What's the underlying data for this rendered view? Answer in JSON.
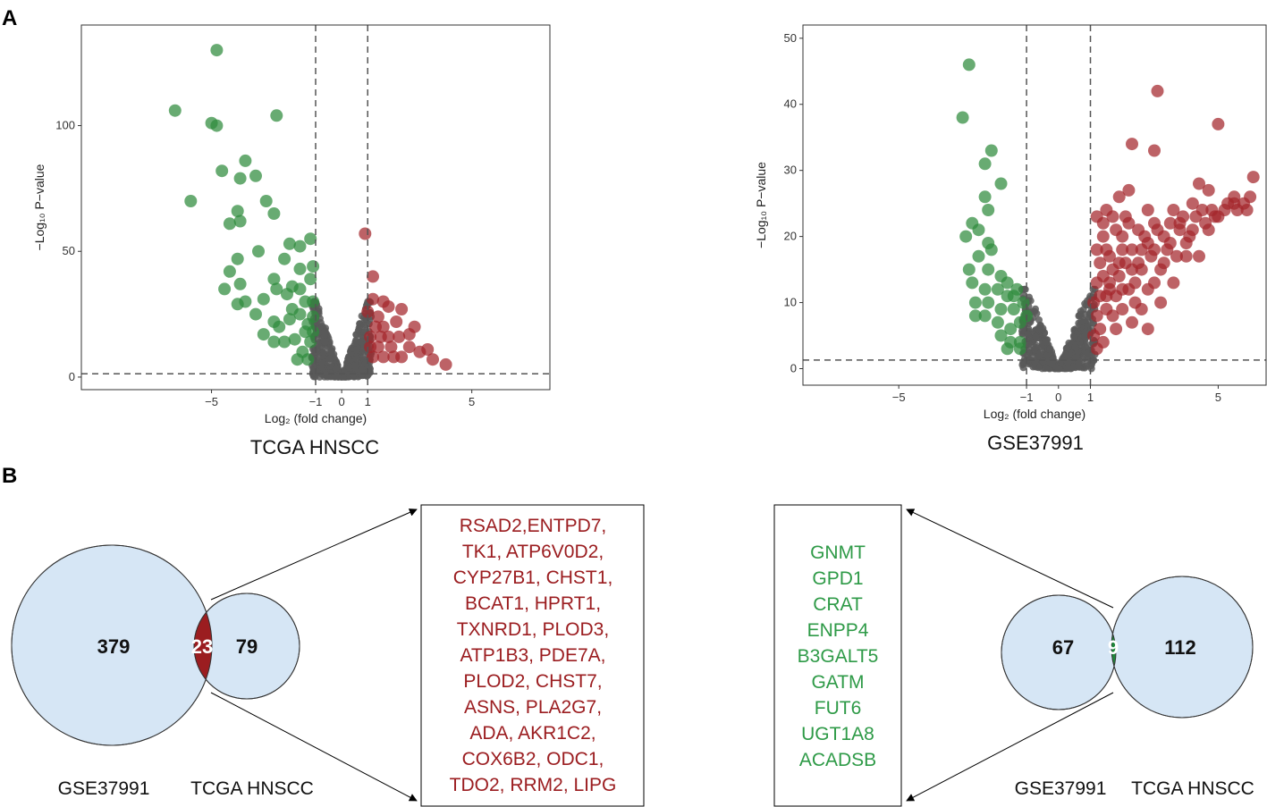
{
  "panel_labels": {
    "a": "A",
    "b": "B"
  },
  "colors": {
    "down": "#2e8b3c",
    "up": "#a3262b",
    "ns": "#595959",
    "venn_fill": "#d6e6f5",
    "venn_red": "#9b1d20",
    "venn_green": "#1f8a3a"
  },
  "chart_data": [
    {
      "type": "scatter",
      "title": "TCGA HNSCC",
      "xlabel": "Log₂ (fold change)",
      "ylabel": "−Log₁₀ P−value",
      "xlim": [
        -10,
        8
      ],
      "ylim": [
        -5,
        140
      ],
      "x_ticks": [
        -5,
        -1,
        0,
        1,
        5
      ],
      "x_tick_labels": [
        "−5",
        "−1",
        "0",
        "1",
        "5"
      ],
      "y_ticks": [
        0,
        50,
        100
      ],
      "y_tick_labels": [
        "0",
        "50",
        "100"
      ],
      "vlines": [
        -1,
        1
      ],
      "hline": 1.3,
      "series": [
        {
          "name": "down",
          "points": [
            [
              -4.8,
              130
            ],
            [
              -6.4,
              106
            ],
            [
              -5.0,
              101
            ],
            [
              -4.8,
              100
            ],
            [
              -2.5,
              104
            ],
            [
              -4.6,
              82
            ],
            [
              -3.7,
              86
            ],
            [
              -3.9,
              79
            ],
            [
              -3.3,
              80
            ],
            [
              -4.0,
              66
            ],
            [
              -4.3,
              61
            ],
            [
              -3.9,
              62
            ],
            [
              -2.9,
              70
            ],
            [
              -2.6,
              65
            ],
            [
              -5.8,
              70
            ],
            [
              -3.2,
              50
            ],
            [
              -4.0,
              47
            ],
            [
              -4.3,
              42
            ],
            [
              -3.9,
              37
            ],
            [
              -2.2,
              47
            ],
            [
              -2.0,
              53
            ],
            [
              -1.6,
              52
            ],
            [
              -1.2,
              55
            ],
            [
              -1.1,
              44
            ],
            [
              -1.6,
              43
            ],
            [
              -2.6,
              39
            ],
            [
              -4.5,
              35
            ],
            [
              -4.0,
              29
            ],
            [
              -3.7,
              30
            ],
            [
              -3.0,
              31
            ],
            [
              -2.5,
              35
            ],
            [
              -2.1,
              33
            ],
            [
              -1.6,
              35
            ],
            [
              -1.2,
              39
            ],
            [
              -1.9,
              36
            ],
            [
              -1.4,
              30
            ],
            [
              -1.1,
              30
            ],
            [
              -1.9,
              27
            ],
            [
              -3.3,
              25
            ],
            [
              -2.6,
              22
            ],
            [
              -3.0,
              17
            ],
            [
              -2.4,
              20
            ],
            [
              -2.0,
              23
            ],
            [
              -1.6,
              25
            ],
            [
              -1.3,
              21
            ],
            [
              -1.1,
              18
            ],
            [
              -1.8,
              15
            ],
            [
              -2.2,
              14
            ],
            [
              -2.6,
              14
            ],
            [
              -1.5,
              10
            ],
            [
              -1.2,
              14
            ],
            [
              -1.3,
              7
            ],
            [
              -1.7,
              7
            ],
            [
              -1.1,
              24
            ],
            [
              -1.4,
              18
            ]
          ]
        },
        {
          "name": "up",
          "points": [
            [
              0.9,
              57
            ],
            [
              1.2,
              40
            ],
            [
              1.4,
              24
            ],
            [
              1.8,
              28
            ],
            [
              1.6,
              30
            ],
            [
              1.2,
              31
            ],
            [
              2.3,
              27
            ],
            [
              2.8,
              20
            ],
            [
              2.1,
              22
            ],
            [
              1.6,
              20
            ],
            [
              2.6,
              17
            ],
            [
              2.2,
              16
            ],
            [
              1.8,
              16
            ],
            [
              1.1,
              16
            ],
            [
              1.4,
              12
            ],
            [
              2.6,
              12
            ],
            [
              3.3,
              11
            ],
            [
              3.0,
              10
            ],
            [
              3.5,
              7
            ],
            [
              4.0,
              5
            ],
            [
              1.2,
              8
            ],
            [
              1.6,
              8
            ],
            [
              2.0,
              8
            ],
            [
              2.3,
              8
            ],
            [
              1.0,
              26
            ],
            [
              1.5,
              16
            ],
            [
              1.9,
              12
            ],
            [
              1.3,
              20
            ],
            [
              1.1,
              12
            ]
          ]
        }
      ],
      "ns_max": 30
    },
    {
      "type": "scatter",
      "title": "GSE37991",
      "xlabel": "Log₂ (fold change)",
      "ylabel": "−Log₁₀ P−value",
      "xlim": [
        -8,
        6.5
      ],
      "ylim": [
        -2.5,
        52
      ],
      "x_ticks": [
        -5,
        -1,
        0,
        1,
        5
      ],
      "x_tick_labels": [
        "−5",
        "−1",
        "0",
        "1",
        "5"
      ],
      "y_ticks": [
        0,
        10,
        20,
        30,
        40,
        50
      ],
      "y_tick_labels": [
        "0",
        "10",
        "20",
        "30",
        "40",
        "50"
      ],
      "vlines": [
        -1,
        1
      ],
      "hline": 1.3,
      "series": [
        {
          "name": "down",
          "points": [
            [
              -2.8,
              46
            ],
            [
              -3.0,
              38
            ],
            [
              -2.1,
              33
            ],
            [
              -2.3,
              31
            ],
            [
              -1.8,
              28
            ],
            [
              -2.3,
              26
            ],
            [
              -2.2,
              24
            ],
            [
              -2.7,
              22
            ],
            [
              -2.5,
              21
            ],
            [
              -2.9,
              20
            ],
            [
              -2.2,
              19
            ],
            [
              -2.1,
              18
            ],
            [
              -2.5,
              17
            ],
            [
              -2.8,
              15
            ],
            [
              -2.2,
              15
            ],
            [
              -1.8,
              14
            ],
            [
              -1.6,
              13
            ],
            [
              -2.7,
              13
            ],
            [
              -2.3,
              12
            ],
            [
              -1.9,
              12
            ],
            [
              -1.6,
              11
            ],
            [
              -1.3,
              12
            ],
            [
              -2.6,
              10
            ],
            [
              -2.2,
              10
            ],
            [
              -1.8,
              9
            ],
            [
              -1.4,
              9
            ],
            [
              -1.1,
              10
            ],
            [
              -2.6,
              8
            ],
            [
              -2.3,
              8
            ],
            [
              -1.9,
              7
            ],
            [
              -1.5,
              6
            ],
            [
              -1.2,
              7
            ],
            [
              -1.8,
              5
            ],
            [
              -1.5,
              4
            ],
            [
              -1.2,
              4
            ],
            [
              -1.6,
              3
            ],
            [
              -1.2,
              3
            ],
            [
              -1.4,
              11
            ],
            [
              -1.0,
              8
            ]
          ]
        },
        {
          "name": "up",
          "points": [
            [
              3.1,
              42
            ],
            [
              5.0,
              37
            ],
            [
              2.3,
              34
            ],
            [
              3.0,
              33
            ],
            [
              6.1,
              29
            ],
            [
              4.4,
              28
            ],
            [
              2.2,
              27
            ],
            [
              4.7,
              27
            ],
            [
              6.0,
              26
            ],
            [
              5.5,
              26
            ],
            [
              1.9,
              26
            ],
            [
              4.2,
              25
            ],
            [
              2.8,
              24
            ],
            [
              3.6,
              24
            ],
            [
              4.8,
              24
            ],
            [
              5.2,
              24
            ],
            [
              5.5,
              25
            ],
            [
              1.5,
              24
            ],
            [
              1.7,
              23
            ],
            [
              2.1,
              23
            ],
            [
              3.0,
              22
            ],
            [
              3.8,
              22
            ],
            [
              4.2,
              21
            ],
            [
              4.6,
              22
            ],
            [
              1.2,
              23
            ],
            [
              1.4,
              22
            ],
            [
              2.5,
              21
            ],
            [
              3.3,
              20
            ],
            [
              1.8,
              21
            ],
            [
              2.0,
              20
            ],
            [
              3.5,
              19
            ],
            [
              4.0,
              19
            ],
            [
              2.8,
              19
            ],
            [
              2.3,
              18
            ],
            [
              1.5,
              18
            ],
            [
              1.6,
              17
            ],
            [
              2.9,
              17
            ],
            [
              3.7,
              17
            ],
            [
              4.4,
              17
            ],
            [
              1.3,
              16
            ],
            [
              2.1,
              16
            ],
            [
              2.6,
              15
            ],
            [
              3.2,
              15
            ],
            [
              1.4,
              14
            ],
            [
              1.9,
              14
            ],
            [
              2.4,
              13
            ],
            [
              3.0,
              13
            ],
            [
              3.6,
              13
            ],
            [
              1.2,
              13
            ],
            [
              1.6,
              12
            ],
            [
              2.2,
              12
            ],
            [
              2.8,
              12
            ],
            [
              1.3,
              11
            ],
            [
              1.8,
              11
            ],
            [
              2.4,
              10
            ],
            [
              3.2,
              10
            ],
            [
              1.1,
              10
            ],
            [
              1.5,
              9
            ],
            [
              2.0,
              9
            ],
            [
              2.6,
              9
            ],
            [
              1.2,
              8
            ],
            [
              1.7,
              8
            ],
            [
              2.3,
              7
            ],
            [
              1.3,
              6
            ],
            [
              1.8,
              6
            ],
            [
              2.8,
              6
            ],
            [
              1.1,
              5
            ],
            [
              1.4,
              4
            ],
            [
              1.2,
              3
            ],
            [
              1.6,
              13
            ],
            [
              2.5,
              16
            ],
            [
              3.4,
              18
            ],
            [
              4.1,
              20
            ],
            [
              4.9,
              23
            ],
            [
              5.8,
              25
            ],
            [
              2.0,
              18
            ],
            [
              3.9,
              23
            ],
            [
              1.9,
              16
            ],
            [
              2.7,
              20
            ],
            [
              3.5,
              22
            ],
            [
              4.5,
              24
            ],
            [
              5.3,
              25
            ],
            [
              1.4,
              20
            ],
            [
              1.7,
              15
            ],
            [
              2.2,
              22
            ],
            [
              3.0,
              18
            ],
            [
              3.8,
              21
            ],
            [
              4.3,
              23
            ],
            [
              5.6,
              24
            ],
            [
              2.0,
              12
            ],
            [
              2.6,
              18
            ],
            [
              3.3,
              16
            ],
            [
              1.2,
              18
            ],
            [
              1.5,
              11
            ],
            [
              2.3,
              15
            ],
            [
              3.1,
              21
            ],
            [
              4.0,
              17
            ],
            [
              4.7,
              21
            ],
            [
              5.0,
              23
            ],
            [
              5.9,
              24
            ]
          ]
        }
      ],
      "ns_max": 12
    }
  ],
  "venn_left": {
    "left_count": "379",
    "overlap_count": "23",
    "right_count": "79",
    "left_label": "GSE37991",
    "right_label": "TCGA HNSCC"
  },
  "venn_right": {
    "left_count": "67",
    "overlap_count": "9",
    "right_count": "112",
    "left_label": "GSE37991",
    "right_label": "TCGA HNSCC"
  },
  "up_genes": [
    "RSAD2,ENTPD7,",
    "TK1, ATP6V0D2,",
    "CYP27B1, CHST1,",
    "BCAT1, HPRT1,",
    "TXNRD1, PLOD3,",
    "ATP1B3, PDE7A,",
    "PLOD2, CHST7,",
    "ASNS, PLA2G7,",
    "ADA,  AKR1C2,",
    "COX6B2, ODC1,",
    "TDO2, RRM2, LIPG"
  ],
  "down_genes": [
    "GNMT",
    "GPD1",
    "CRAT",
    "ENPP4",
    "B3GALT5",
    "GATM",
    "FUT6",
    "UGT1A8",
    "ACADSB"
  ]
}
